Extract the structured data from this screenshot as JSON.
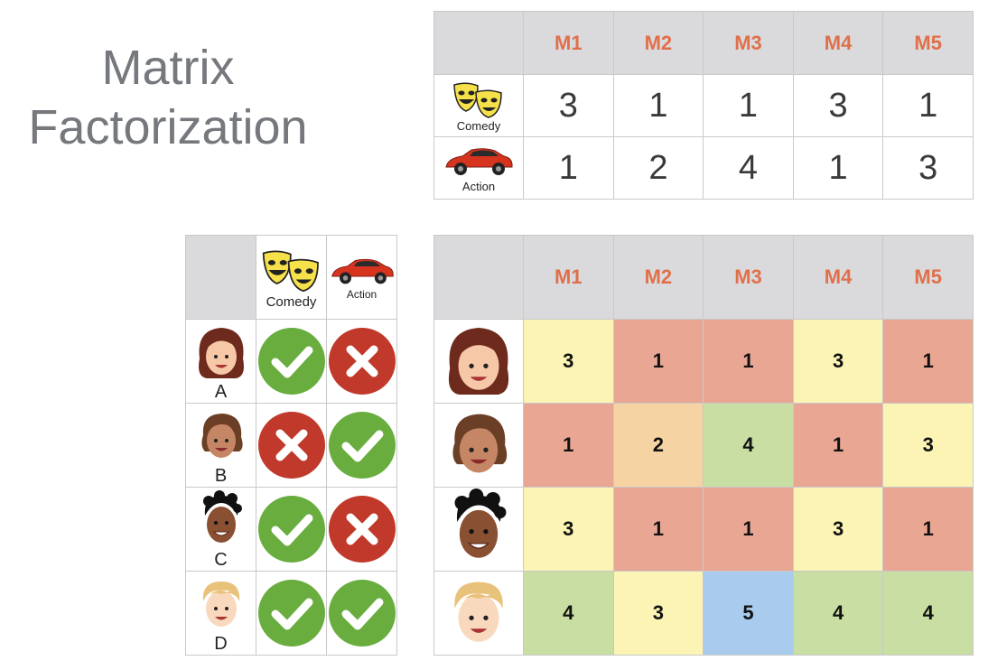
{
  "title": {
    "line1": "Matrix",
    "line2": "Factorization"
  },
  "genres": {
    "comedy": "Comedy",
    "action": "Action"
  },
  "movies": [
    "M1",
    "M2",
    "M3",
    "M4",
    "M5"
  ],
  "users": [
    "A",
    "B",
    "C",
    "D"
  ],
  "genre_matrix": {
    "comedy": [
      "3",
      "1",
      "1",
      "3",
      "1"
    ],
    "action": [
      "1",
      "2",
      "4",
      "1",
      "3"
    ]
  },
  "preferences": {
    "A": {
      "comedy": "check",
      "action": "cross"
    },
    "B": {
      "comedy": "cross",
      "action": "check"
    },
    "C": {
      "comedy": "check",
      "action": "cross"
    },
    "D": {
      "comedy": "check",
      "action": "check"
    }
  },
  "ratings": {
    "A": [
      "3",
      "1",
      "1",
      "3",
      "1"
    ],
    "B": [
      "1",
      "2",
      "4",
      "1",
      "3"
    ],
    "C": [
      "3",
      "1",
      "1",
      "3",
      "1"
    ],
    "D": [
      "4",
      "3",
      "5",
      "4",
      "4"
    ]
  },
  "colors": {
    "title": "#75787c",
    "movie_header": "#e0704a",
    "header_bg": "#dadadc",
    "yellow": "#fbf4b5",
    "red": "#e9a693",
    "orange": "#f6d3a2",
    "green": "#c8dea2",
    "blue": "#a9cbed",
    "check": "#69ad3f",
    "cross": "#c0392b"
  }
}
